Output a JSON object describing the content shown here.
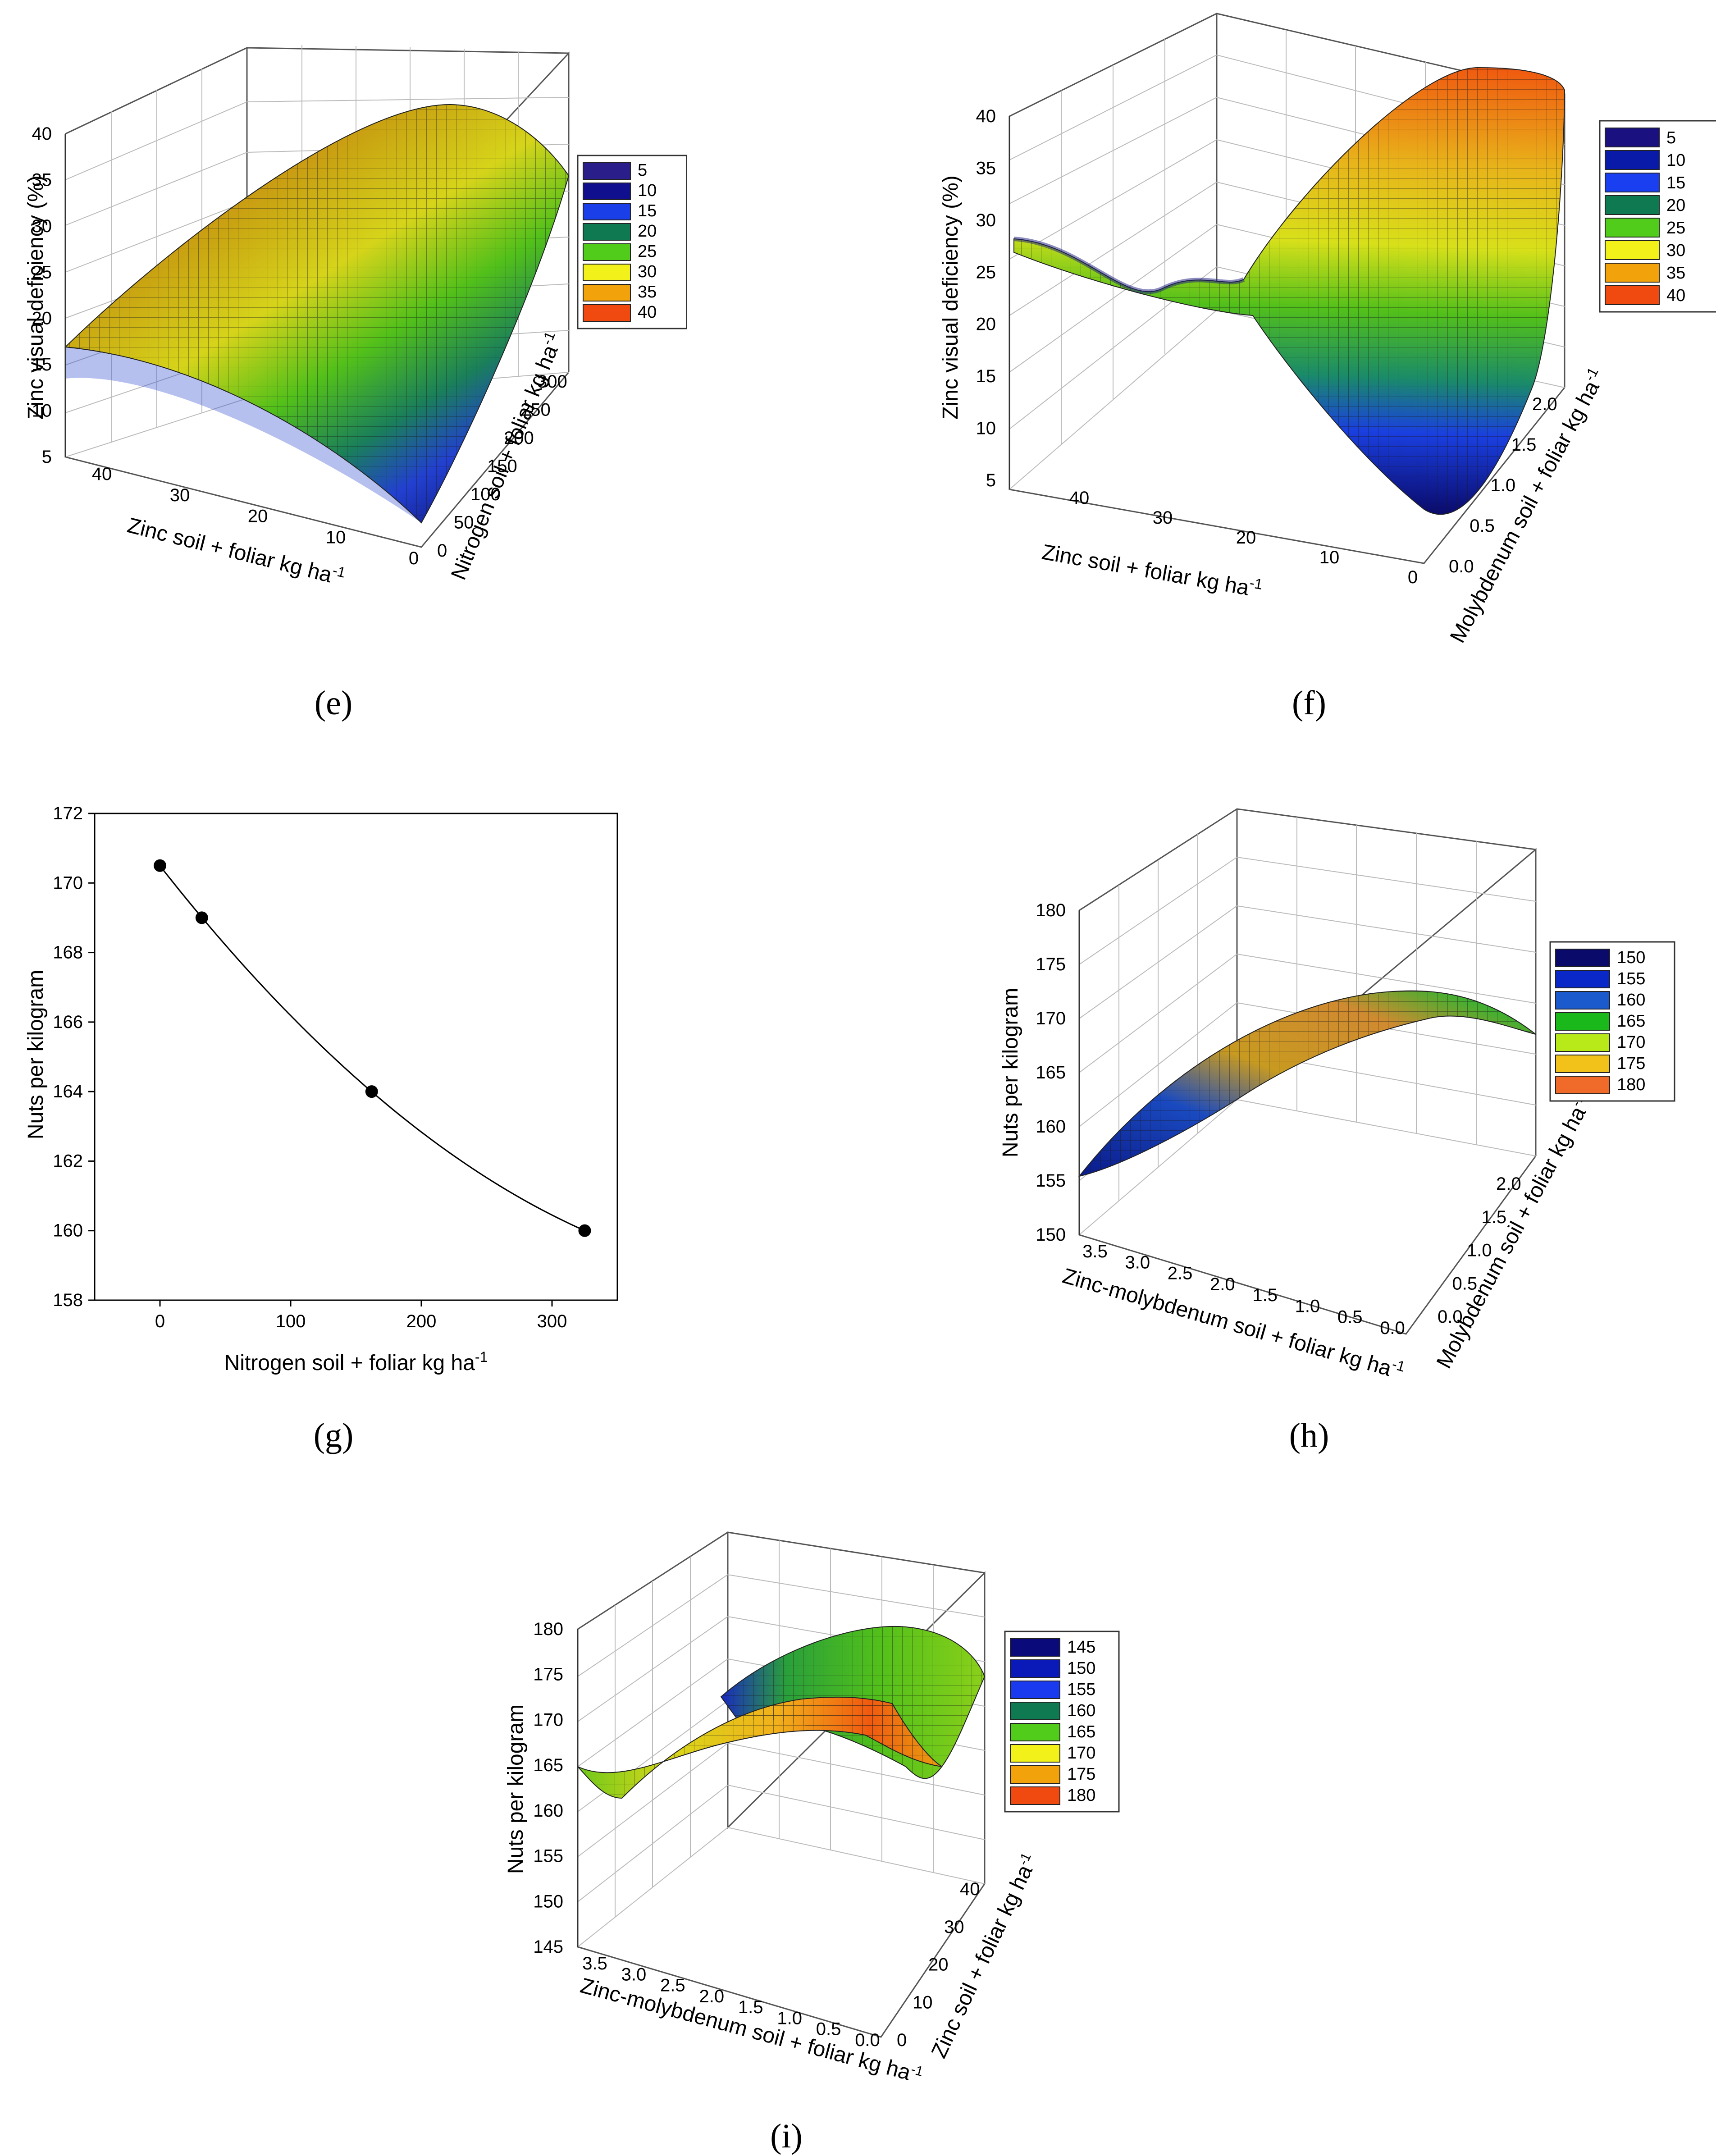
{
  "chart_data": [
    {
      "id": "e",
      "type": "surface3d",
      "caption": "(e)",
      "zlabel": "Zinc visual deficiency (%)",
      "xlabel": "Zinc  soil + foliar kg ha",
      "xlabel_sup": "-1",
      "ylabel": "Nitrogen soil + foliar kg ha",
      "ylabel_sup": "-1",
      "x_ticks": [
        "40",
        "30",
        "20",
        "10",
        "0"
      ],
      "y_ticks": [
        "0",
        "50",
        "100",
        "150",
        "200",
        "250",
        "300"
      ],
      "z_ticks": [
        "5",
        "10",
        "15",
        "20",
        "25",
        "30",
        "35",
        "40"
      ],
      "zlim": [
        5,
        40
      ],
      "legend": [
        "5",
        "10",
        "15",
        "20",
        "25",
        "30",
        "35",
        "40"
      ],
      "corner_values": {
        "front_left": 16.5,
        "front_right": 5,
        "back_left": 38,
        "back_right": 35
      }
    },
    {
      "id": "f",
      "type": "surface3d",
      "caption": "(f)",
      "zlabel": "Zinc visual deficiency (%)",
      "xlabel": "Zinc  soil + foliar kg ha",
      "xlabel_sup": "-1",
      "ylabel": "Molybdenum  soil + foliar kg ha",
      "ylabel_sup": "-1",
      "x_ticks": [
        "40",
        "30",
        "20",
        "10",
        "0"
      ],
      "y_ticks": [
        "0.0",
        "0.5",
        "1.0",
        "1.5",
        "2.0"
      ],
      "z_ticks": [
        "5",
        "10",
        "15",
        "20",
        "25",
        "30",
        "35",
        "40"
      ],
      "zlim": [
        5,
        40
      ],
      "legend": [
        "5",
        "10",
        "15",
        "20",
        "25",
        "30",
        "35",
        "40"
      ],
      "corner_values": {
        "front_left": 28,
        "front_right": 5,
        "back_left": 22,
        "back_right": 38
      }
    },
    {
      "id": "g",
      "type": "line",
      "caption": "(g)",
      "xlabel": "Nitrogen soil + foliar kg ha",
      "xlabel_sup": "-1",
      "ylabel": "Nuts per kilogram",
      "x": [
        0,
        32,
        162,
        325
      ],
      "y": [
        170.5,
        169.0,
        164.0,
        160.0
      ],
      "xlim": [
        -50,
        350
      ],
      "ylim": [
        158,
        172
      ],
      "x_ticks": [
        0,
        100,
        200,
        300
      ],
      "y_ticks": [
        158,
        160,
        162,
        164,
        166,
        168,
        170,
        172
      ]
    },
    {
      "id": "h",
      "type": "surface3d",
      "caption": "(h)",
      "zlabel": "Nuts per kilogram",
      "xlabel": "Zinc-molybdenum  soil + foliar kg ha",
      "xlabel_sup": "-1",
      "ylabel": "Molybdenum  soil + foliar kg ha",
      "ylabel_sup": "-1",
      "x_ticks": [
        "3.5",
        "3.0",
        "2.5",
        "2.0",
        "1.5",
        "1.0",
        "0.5",
        "0.0"
      ],
      "y_ticks": [
        "0.0",
        "0.5",
        "1.0",
        "1.5",
        "2.0"
      ],
      "z_ticks": [
        "150",
        "155",
        "160",
        "165",
        "170",
        "175",
        "180"
      ],
      "zlim": [
        150,
        180
      ],
      "legend": [
        "150",
        "155",
        "160",
        "165",
        "170",
        "175",
        "180"
      ],
      "corner_values": {
        "front_left": 155,
        "front_right": 170,
        "back_left": 165,
        "back_right": 172
      }
    },
    {
      "id": "i",
      "type": "surface3d",
      "caption": "(i)",
      "zlabel": "Nuts per kilogram",
      "xlabel": "Zinc-molybdenum  soil + foliar kg ha",
      "xlabel_sup": "-1",
      "ylabel": "Zinc soil + foliar kg ha",
      "ylabel_sup": "-1",
      "x_ticks": [
        "3.5",
        "3.0",
        "2.5",
        "2.0",
        "1.5",
        "1.0",
        "0.5",
        "0.0"
      ],
      "y_ticks": [
        "0",
        "10",
        "20",
        "30",
        "40"
      ],
      "z_ticks": [
        "145",
        "150",
        "155",
        "160",
        "165",
        "170",
        "175",
        "180"
      ],
      "zlim": [
        145,
        180
      ],
      "legend": [
        "145",
        "150",
        "155",
        "160",
        "165",
        "170",
        "175",
        "180"
      ],
      "corner_values": {
        "front_left": 160,
        "front_right": 168,
        "back_left": 165,
        "back_right": 172
      }
    }
  ],
  "colors": {
    "legend_e": [
      "#2a1f8a",
      "#10108f",
      "#1a3fe8",
      "#0f7a52",
      "#52cc1a",
      "#f2f21a",
      "#f2a20a",
      "#f04a10"
    ],
    "legend_f": [
      "#1a1080",
      "#0a1aa8",
      "#1a3ff0",
      "#0f7a52",
      "#52cc1a",
      "#f2f21a",
      "#f2a20a",
      "#f04a10"
    ],
    "legend_h": [
      "#0a0a6a",
      "#0a28c8",
      "#1a5acc",
      "#1ab81a",
      "#b8ea1a",
      "#f2c21a",
      "#f06a2a"
    ],
    "legend_i": [
      "#0a0a7a",
      "#0a1ab8",
      "#1a3af0",
      "#0f7a52",
      "#52cc1a",
      "#f2f21a",
      "#f2a20a",
      "#f04a10"
    ]
  }
}
